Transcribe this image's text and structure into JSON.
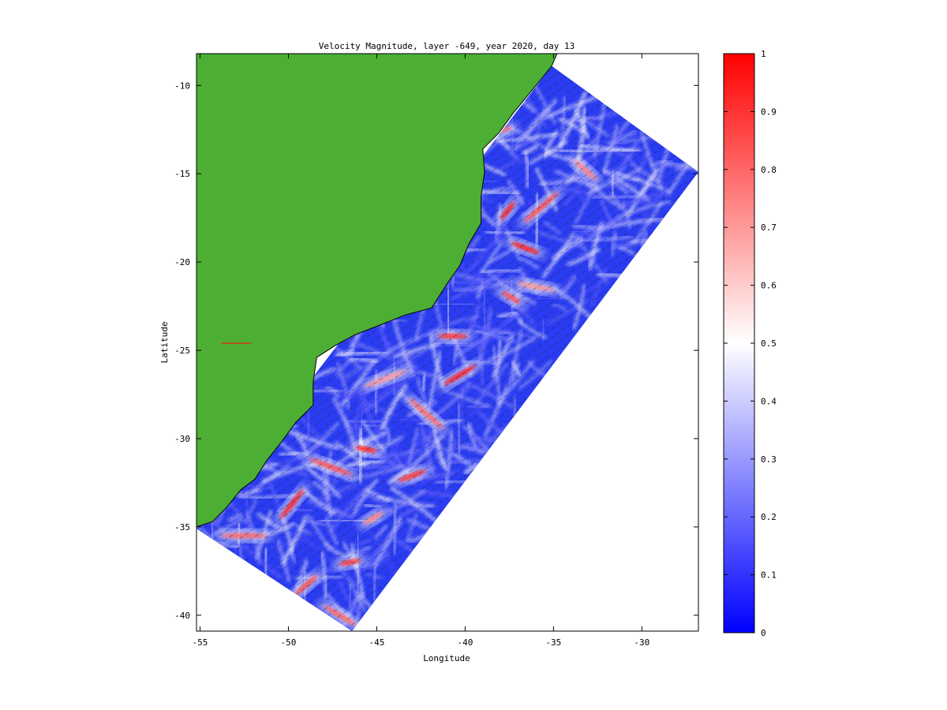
{
  "chart_data": {
    "type": "heatmap",
    "title": "Velocity Magnitude, layer -649, year 2020, day 13",
    "xlabel": "Longitude",
    "ylabel": "Latitude",
    "xlim": [
      -55.2,
      -26.8
    ],
    "ylim": [
      -40.9,
      -8.2
    ],
    "x_ticks": [
      -55,
      -50,
      -45,
      -40,
      -35,
      -30
    ],
    "y_ticks": [
      -10,
      -15,
      -20,
      -25,
      -30,
      -35,
      -40
    ],
    "grid": false,
    "colorbar": {
      "range": [
        0,
        1
      ],
      "ticks": [
        0,
        0.1,
        0.2,
        0.3,
        0.4,
        0.5,
        0.6,
        0.7,
        0.8,
        0.9,
        1
      ],
      "colormap": [
        "#0000ff",
        "#ffffff",
        "#ff0000"
      ]
    },
    "land_color": "#4caf34",
    "domain_polygon": [
      [
        -55.2,
        -35.1
      ],
      [
        -46.4,
        -40.9
      ],
      [
        -26.8,
        -14.9
      ],
      [
        -35.1,
        -8.9
      ]
    ],
    "coastline": [
      [
        -55.2,
        -35.0
      ],
      [
        -54.3,
        -34.7
      ],
      [
        -53.5,
        -33.9
      ],
      [
        -52.7,
        -32.9
      ],
      [
        -51.9,
        -32.3
      ],
      [
        -51.2,
        -31.2
      ],
      [
        -50.4,
        -30.2
      ],
      [
        -49.6,
        -29.1
      ],
      [
        -48.6,
        -28.1
      ],
      [
        -48.6,
        -26.8
      ],
      [
        -48.4,
        -25.4
      ],
      [
        -47.3,
        -24.7
      ],
      [
        -46.2,
        -24.1
      ],
      [
        -44.9,
        -23.6
      ],
      [
        -43.4,
        -23.0
      ],
      [
        -41.9,
        -22.6
      ],
      [
        -41.0,
        -21.2
      ],
      [
        -40.3,
        -20.2
      ],
      [
        -39.8,
        -19.0
      ],
      [
        -39.1,
        -17.8
      ],
      [
        -39.1,
        -16.3
      ],
      [
        -38.9,
        -14.9
      ],
      [
        -39.0,
        -13.6
      ],
      [
        -38.1,
        -12.7
      ],
      [
        -37.3,
        -11.6
      ],
      [
        -36.4,
        -10.5
      ],
      [
        -35.1,
        -8.9
      ],
      [
        -34.8,
        -8.2
      ]
    ],
    "reference_vector": {
      "lon": [
        -53.8,
        -52.1
      ],
      "lat": -24.6
    },
    "high_speed_features": [
      {
        "lon": -37.6,
        "lat": -17.1,
        "value": 0.95
      },
      {
        "lon": -36.6,
        "lat": -19.2,
        "value": 0.95
      },
      {
        "lon": -38.4,
        "lat": -12.6,
        "value": 0.8
      },
      {
        "lon": -35.7,
        "lat": -16.9,
        "value": 0.85
      },
      {
        "lon": -37.4,
        "lat": -22.0,
        "value": 0.85
      },
      {
        "lon": -40.7,
        "lat": -24.2,
        "value": 0.9
      },
      {
        "lon": -40.3,
        "lat": -26.4,
        "value": 0.95
      },
      {
        "lon": -42.2,
        "lat": -28.6,
        "value": 0.8
      },
      {
        "lon": -45.6,
        "lat": -30.6,
        "value": 0.95
      },
      {
        "lon": -43.0,
        "lat": -32.1,
        "value": 0.9
      },
      {
        "lon": -49.8,
        "lat": -33.7,
        "value": 0.95
      },
      {
        "lon": -47.6,
        "lat": -31.6,
        "value": 0.85
      },
      {
        "lon": -46.5,
        "lat": -37.0,
        "value": 0.9
      },
      {
        "lon": -49.0,
        "lat": -38.3,
        "value": 0.85
      },
      {
        "lon": -47.1,
        "lat": -40.0,
        "value": 0.8
      },
      {
        "lon": -52.5,
        "lat": -35.5,
        "value": 0.8
      },
      {
        "lon": -45.2,
        "lat": -34.5,
        "value": 0.75
      },
      {
        "lon": -33.2,
        "lat": -14.8,
        "value": 0.75
      },
      {
        "lon": -36.0,
        "lat": -21.4,
        "value": 0.7
      },
      {
        "lon": -44.5,
        "lat": -26.6,
        "value": 0.7
      }
    ]
  }
}
